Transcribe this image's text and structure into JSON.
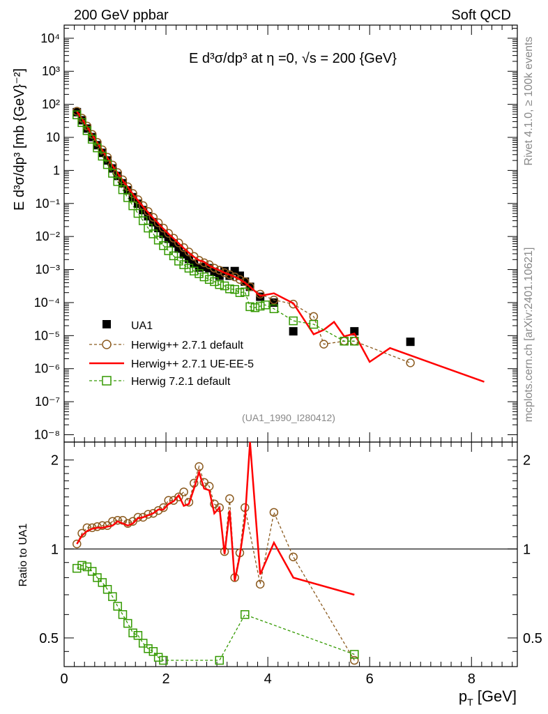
{
  "header": {
    "left": "200 GeV ppbar",
    "right": "Soft QCD",
    "side_top": "Rivet 4.1.0, ≥ 100k events",
    "side_bottom": "mcplots.cern.ch [arXiv:2401.10621]",
    "watermark": "(UA1_1990_I280412)"
  },
  "chart_data": [
    {
      "type": "scatter",
      "title": "E d³σ/dp³ at η =0, √s = 200 {GeV}",
      "ylabel": "E d³σ/dp³ [mb {GeV}⁻²]",
      "xlabel": "",
      "xlim": [
        0,
        8.9
      ],
      "ylim": [
        6e-09,
        25000.0
      ],
      "yscale": "log",
      "y_ticks": [
        {
          "value": 10000.0,
          "label": "10⁴"
        },
        {
          "value": 1000.0,
          "label": "10³"
        },
        {
          "value": 100.0,
          "label": "10²"
        },
        {
          "value": 10,
          "label": "10"
        },
        {
          "value": 1,
          "label": "1"
        },
        {
          "value": 0.1,
          "label": "10⁻¹"
        },
        {
          "value": 0.01,
          "label": "10⁻²"
        },
        {
          "value": 0.001,
          "label": "10⁻³"
        },
        {
          "value": 0.0001,
          "label": "10⁻⁴"
        },
        {
          "value": 1e-05,
          "label": "10⁻⁵"
        },
        {
          "value": 1e-06,
          "label": "10⁻⁶"
        },
        {
          "value": 1e-07,
          "label": "10⁻⁷"
        },
        {
          "value": 1e-08,
          "label": "10⁻⁸"
        }
      ],
      "legend": [
        "UA1",
        "Herwig++ 2.7.1 default",
        "Herwig++ 2.7.1 UE-EE-5",
        "Herwig 7.2.1 default"
      ],
      "legend_position": "bottom-left",
      "series": [
        {
          "name": "UA1",
          "color": "#000000",
          "marker": "filled-square",
          "x": [
            0.25,
            0.35,
            0.45,
            0.55,
            0.65,
            0.75,
            0.85,
            0.95,
            1.05,
            1.15,
            1.25,
            1.35,
            1.45,
            1.55,
            1.65,
            1.75,
            1.85,
            1.95,
            2.05,
            2.15,
            2.25,
            2.35,
            2.45,
            2.55,
            2.65,
            2.75,
            2.85,
            2.95,
            3.05,
            3.15,
            3.25,
            3.35,
            3.45,
            3.55,
            3.65,
            3.85,
            4.12,
            4.5,
            5.7,
            6.8
          ],
          "y": [
            58,
            33,
            18.5,
            10.2,
            5.8,
            3.4,
            2.0,
            1.15,
            0.68,
            0.41,
            0.25,
            0.155,
            0.098,
            0.063,
            0.041,
            0.027,
            0.018,
            0.012,
            0.0085,
            0.0062,
            0.0043,
            0.0029,
            0.0021,
            0.0015,
            0.00115,
            0.0012,
            0.0011,
            0.00085,
            0.00065,
            0.0009,
            0.00065,
            0.0009,
            0.00065,
            0.00043,
            0.0003,
            0.00015,
            0.0001,
            1.35e-05,
            1.35e-05,
            6.5e-06
          ]
        },
        {
          "name": "Herwig++ 2.7.1 default",
          "color": "#8b5a1e",
          "marker": "open-circle",
          "line": "dashed",
          "x": [
            0.25,
            0.35,
            0.45,
            0.55,
            0.65,
            0.75,
            0.85,
            0.95,
            1.05,
            1.15,
            1.25,
            1.35,
            1.45,
            1.55,
            1.65,
            1.75,
            1.85,
            1.95,
            2.05,
            2.15,
            2.25,
            2.35,
            2.45,
            2.55,
            2.65,
            2.75,
            2.85,
            2.95,
            3.05,
            3.15,
            3.25,
            3.35,
            3.45,
            3.55,
            3.65,
            3.85,
            4.12,
            4.5,
            4.9,
            5.1,
            5.5,
            5.7,
            6.8
          ],
          "y": [
            62,
            38,
            22,
            12.3,
            7.1,
            4.2,
            2.5,
            1.45,
            0.86,
            0.52,
            0.32,
            0.2,
            0.13,
            0.086,
            0.057,
            0.038,
            0.026,
            0.018,
            0.0125,
            0.0089,
            0.0064,
            0.0046,
            0.0034,
            0.0025,
            0.0019,
            0.0016,
            0.0014,
            0.0011,
            0.00095,
            0.0008,
            0.0007,
            0.0006,
            0.0005,
            0.00043,
            0.0003,
            0.00018,
            0.00012,
            9e-05,
            3.8e-05,
            5.5e-06,
            6.8e-06,
            6.8e-06,
            1.5e-06
          ]
        },
        {
          "name": "Herwig++ 2.7.1 UE-EE-5",
          "color": "#ff0000",
          "marker": "none",
          "line": "solid",
          "x": [
            0.25,
            0.35,
            0.45,
            0.55,
            0.65,
            0.75,
            0.85,
            0.95,
            1.05,
            1.15,
            1.25,
            1.35,
            1.45,
            1.55,
            1.65,
            1.75,
            1.85,
            1.95,
            2.05,
            2.15,
            2.25,
            2.35,
            2.45,
            2.55,
            2.65,
            2.75,
            2.85,
            2.95,
            3.05,
            3.15,
            3.25,
            3.35,
            3.45,
            3.55,
            3.65,
            3.85,
            4.12,
            4.5,
            4.9,
            5.1,
            5.3,
            5.5,
            5.7,
            6.0,
            6.4,
            8.25
          ],
          "y": [
            60,
            37,
            21,
            12,
            6.9,
            4.1,
            2.4,
            1.4,
            0.84,
            0.5,
            0.31,
            0.19,
            0.122,
            0.08,
            0.053,
            0.036,
            0.025,
            0.017,
            0.012,
            0.0087,
            0.0062,
            0.0044,
            0.0032,
            0.0024,
            0.0019,
            0.0017,
            0.0013,
            0.0011,
            0.00095,
            0.0008,
            0.0007,
            0.0006,
            0.0005,
            0.0004,
            0.0003,
            0.00016,
            0.00019,
            9.5e-05,
            1.1e-05,
            1.5e-05,
            2.6e-05,
            9.5e-06,
            1.15e-05,
            1.6e-06,
            4.2e-06,
            4e-07
          ]
        },
        {
          "name": "Herwig 7.2.1 default",
          "color": "#339900",
          "marker": "open-square",
          "line": "dashed",
          "x": [
            0.25,
            0.35,
            0.45,
            0.55,
            0.65,
            0.75,
            0.85,
            0.95,
            1.05,
            1.15,
            1.25,
            1.35,
            1.45,
            1.55,
            1.65,
            1.75,
            1.85,
            1.95,
            2.05,
            2.15,
            2.25,
            2.35,
            2.45,
            2.55,
            2.65,
            2.75,
            2.85,
            2.95,
            3.05,
            3.15,
            3.25,
            3.35,
            3.45,
            3.55,
            3.65,
            3.75,
            3.85,
            3.95,
            4.12,
            4.5,
            4.9,
            5.5,
            5.7
          ],
          "y": [
            48,
            28,
            16,
            8.8,
            4.8,
            2.7,
            1.5,
            0.82,
            0.46,
            0.26,
            0.15,
            0.085,
            0.05,
            0.03,
            0.018,
            0.012,
            0.0078,
            0.0053,
            0.0037,
            0.0026,
            0.0018,
            0.0014,
            0.0011,
            0.0009,
            0.00075,
            0.0006,
            0.0005,
            0.00043,
            0.00035,
            0.00032,
            0.00026,
            0.00025,
            0.0002,
            0.00021,
            7.5e-05,
            7e-05,
            7.8e-05,
            8.5e-05,
            6.5e-05,
            2.8e-05,
            2.2e-05,
            6.8e-06,
            6.8e-06
          ]
        }
      ]
    },
    {
      "type": "line",
      "ylabel": "Ratio to UA1",
      "xlabel": "p_T [GeV]",
      "xlim": [
        0,
        8.9
      ],
      "ylim": [
        0.4,
        2.3
      ],
      "yscale": "log",
      "x_ticks": [
        0,
        2,
        4,
        6,
        8
      ],
      "y_ticks": [
        {
          "value": 0.5,
          "label": "0.5"
        },
        {
          "value": 1,
          "label": "1"
        },
        {
          "value": 2,
          "label": "2"
        }
      ],
      "series": [
        {
          "name": "Herwig++ 2.7.1 default",
          "color": "#8b5a1e",
          "marker": "open-circle",
          "line": "dashed",
          "x": [
            0.25,
            0.35,
            0.45,
            0.55,
            0.65,
            0.75,
            0.85,
            0.95,
            1.05,
            1.15,
            1.25,
            1.35,
            1.45,
            1.55,
            1.65,
            1.75,
            1.85,
            1.95,
            2.05,
            2.15,
            2.25,
            2.35,
            2.45,
            2.55,
            2.65,
            2.75,
            2.85,
            2.95,
            3.05,
            3.15,
            3.25,
            3.35,
            3.45,
            3.55,
            3.85,
            4.12,
            4.5,
            5.7
          ],
          "y": [
            1.04,
            1.13,
            1.18,
            1.18,
            1.19,
            1.2,
            1.2,
            1.24,
            1.25,
            1.25,
            1.22,
            1.24,
            1.28,
            1.28,
            1.31,
            1.32,
            1.35,
            1.38,
            1.46,
            1.46,
            1.5,
            1.56,
            1.44,
            1.67,
            1.9,
            1.68,
            1.63,
            1.42,
            1.38,
            0.98,
            1.48,
            0.8,
            0.97,
            1.38,
            0.76,
            1.33,
            0.94,
            0.42
          ]
        },
        {
          "name": "Herwig++ 2.7.1 UE-EE-5",
          "color": "#ff0000",
          "marker": "none",
          "line": "solid",
          "x": [
            0.25,
            0.35,
            0.45,
            0.55,
            0.65,
            0.75,
            0.85,
            0.95,
            1.05,
            1.15,
            1.25,
            1.35,
            1.45,
            1.55,
            1.65,
            1.75,
            1.85,
            1.95,
            2.05,
            2.15,
            2.25,
            2.35,
            2.45,
            2.55,
            2.65,
            2.75,
            2.85,
            2.95,
            3.05,
            3.15,
            3.25,
            3.35,
            3.45,
            3.55,
            3.65,
            3.85,
            4.12,
            4.5,
            5.7
          ],
          "y": [
            1.04,
            1.11,
            1.15,
            1.17,
            1.18,
            1.18,
            1.19,
            1.2,
            1.24,
            1.22,
            1.2,
            1.22,
            1.27,
            1.28,
            1.3,
            1.32,
            1.36,
            1.36,
            1.42,
            1.45,
            1.52,
            1.4,
            1.42,
            1.6,
            1.82,
            1.6,
            1.58,
            1.32,
            1.38,
            0.96,
            1.35,
            0.78,
            0.95,
            1.25,
            2.3,
            0.82,
            1.05,
            0.8,
            0.7
          ]
        },
        {
          "name": "Herwig 7.2.1 default",
          "color": "#339900",
          "marker": "open-square",
          "line": "dashed",
          "x": [
            0.25,
            0.35,
            0.45,
            0.55,
            0.65,
            0.75,
            0.85,
            0.95,
            1.05,
            1.15,
            1.25,
            1.35,
            1.45,
            1.55,
            1.65,
            1.75,
            1.85,
            1.95,
            3.05,
            3.55,
            5.7
          ],
          "y": [
            0.86,
            0.88,
            0.87,
            0.84,
            0.8,
            0.77,
            0.73,
            0.69,
            0.64,
            0.6,
            0.56,
            0.52,
            0.51,
            0.48,
            0.46,
            0.45,
            0.43,
            0.42,
            0.42,
            0.6,
            0.44
          ]
        }
      ]
    }
  ]
}
